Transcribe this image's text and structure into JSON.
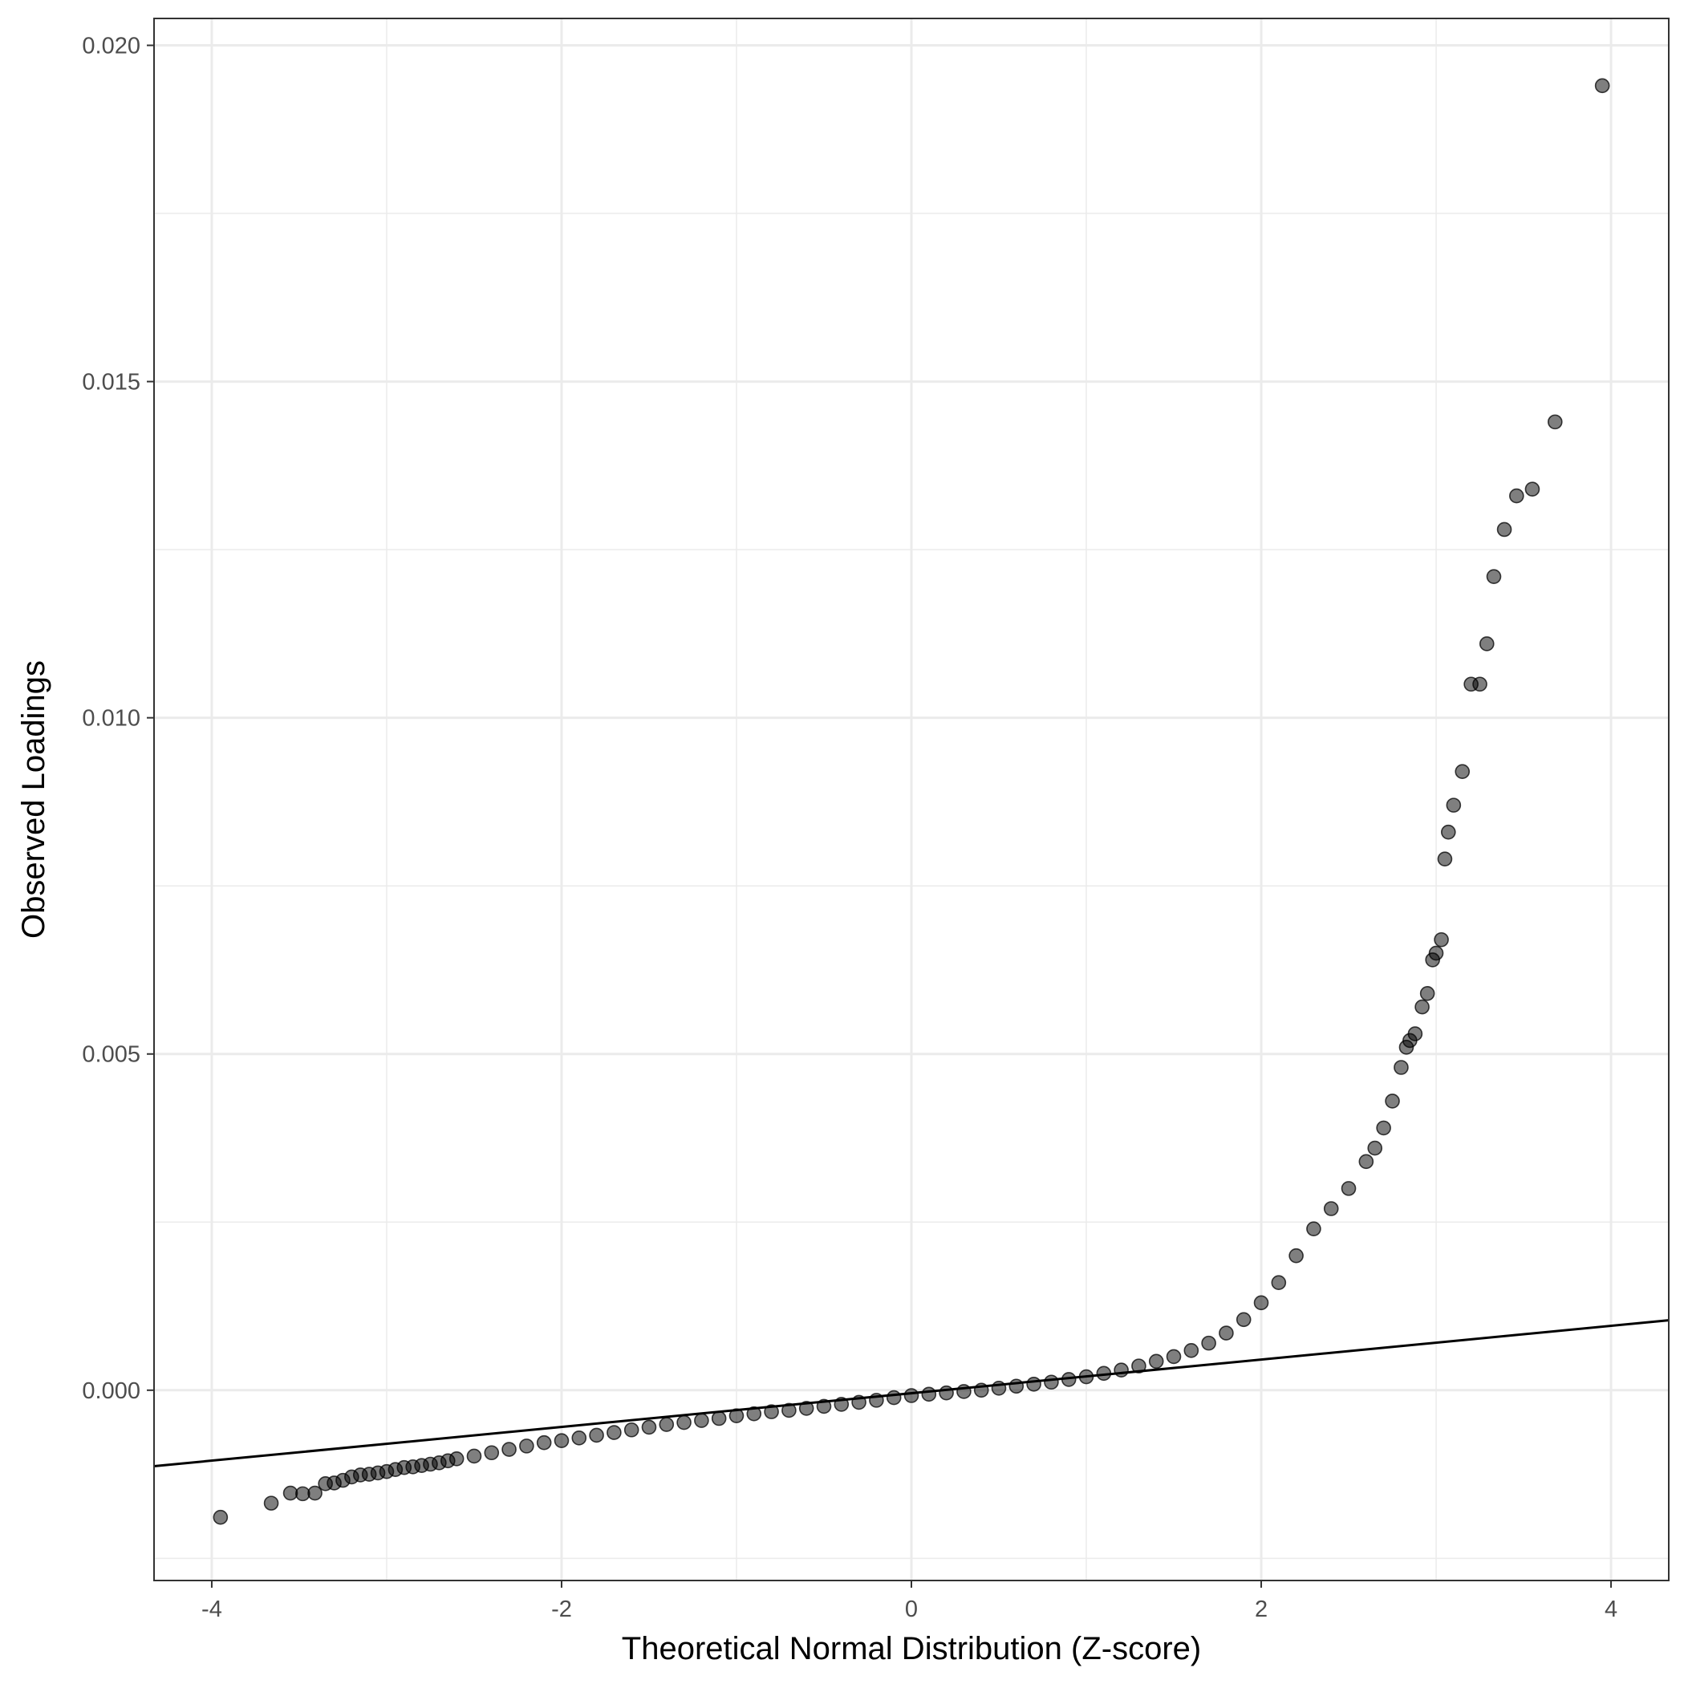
{
  "chart_data": {
    "type": "scatter",
    "title": "",
    "xlabel": "Theoretical Normal Distribution (Z-score)",
    "ylabel": "Observed Loadings",
    "xlim": [
      -4.33,
      4.33
    ],
    "ylim": [
      -0.00283,
      0.0204
    ],
    "x_ticks": [
      -4,
      -2,
      0,
      2,
      4
    ],
    "x_tick_labels": [
      "-4",
      "-2",
      "0",
      "2",
      "4"
    ],
    "y_ticks": [
      0.0,
      0.005,
      0.01,
      0.015,
      0.02
    ],
    "y_tick_labels": [
      "0.000",
      "0.005",
      "0.010",
      "0.015",
      "0.020"
    ],
    "grid": true,
    "legend": "none",
    "reference_line": {
      "type": "qq-line",
      "points": [
        [
          -4.33,
          -0.00113
        ],
        [
          4.33,
          0.00104
        ]
      ],
      "color": "#000000"
    },
    "point_color": "#000000",
    "point_alpha": 0.5,
    "series": [
      {
        "values": [
          [
            -3.95,
            -0.00189
          ],
          [
            -3.66,
            -0.00168
          ],
          [
            -3.55,
            -0.00153
          ],
          [
            -3.48,
            -0.00154
          ],
          [
            -3.41,
            -0.00153
          ],
          [
            -3.35,
            -0.00139
          ],
          [
            -3.3,
            -0.00138
          ],
          [
            -3.25,
            -0.00134
          ],
          [
            -3.2,
            -0.00129
          ],
          [
            -3.15,
            -0.00126
          ],
          [
            -3.1,
            -0.00125
          ],
          [
            -3.05,
            -0.00123
          ],
          [
            -3.0,
            -0.00121
          ],
          [
            -2.95,
            -0.00118
          ],
          [
            -2.9,
            -0.00115
          ],
          [
            -2.85,
            -0.00114
          ],
          [
            -2.8,
            -0.00112
          ],
          [
            -2.75,
            -0.0011
          ],
          [
            -2.7,
            -0.00108
          ],
          [
            -2.65,
            -0.00105
          ],
          [
            -2.6,
            -0.00102
          ],
          [
            -2.5,
            -0.00098
          ],
          [
            -2.4,
            -0.00093
          ],
          [
            -2.3,
            -0.00088
          ],
          [
            -2.2,
            -0.00083
          ],
          [
            -2.1,
            -0.00078
          ],
          [
            -2.0,
            -0.00075
          ],
          [
            -1.9,
            -0.00071
          ],
          [
            -1.8,
            -0.00067
          ],
          [
            -1.7,
            -0.00063
          ],
          [
            -1.6,
            -0.00059
          ],
          [
            -1.5,
            -0.00055
          ],
          [
            -1.4,
            -0.00051
          ],
          [
            -1.3,
            -0.00048
          ],
          [
            -1.2,
            -0.00045
          ],
          [
            -1.1,
            -0.00042
          ],
          [
            -1.0,
            -0.00038
          ],
          [
            -0.9,
            -0.00035
          ],
          [
            -0.8,
            -0.00032
          ],
          [
            -0.7,
            -0.0003
          ],
          [
            -0.6,
            -0.00027
          ],
          [
            -0.5,
            -0.00024
          ],
          [
            -0.4,
            -0.00021
          ],
          [
            -0.3,
            -0.00018
          ],
          [
            -0.2,
            -0.00015
          ],
          [
            -0.1,
            -0.00011
          ],
          [
            0.0,
            -8e-05
          ],
          [
            0.1,
            -6e-05
          ],
          [
            0.2,
            -4e-05
          ],
          [
            0.3,
            -2e-05
          ],
          [
            0.4,
            0.0
          ],
          [
            0.5,
            3e-05
          ],
          [
            0.6,
            6e-05
          ],
          [
            0.7,
            9e-05
          ],
          [
            0.8,
            0.00012
          ],
          [
            0.9,
            0.00016
          ],
          [
            1.0,
            0.0002
          ],
          [
            1.1,
            0.00025
          ],
          [
            1.2,
            0.0003
          ],
          [
            1.3,
            0.00036
          ],
          [
            1.4,
            0.00043
          ],
          [
            1.5,
            0.0005
          ],
          [
            1.6,
            0.00059
          ],
          [
            1.7,
            0.0007
          ],
          [
            1.8,
            0.00085
          ],
          [
            1.9,
            0.00105
          ],
          [
            2.0,
            0.0013
          ],
          [
            2.1,
            0.0016
          ],
          [
            2.2,
            0.002
          ],
          [
            2.3,
            0.0024
          ],
          [
            2.4,
            0.0027
          ],
          [
            2.5,
            0.003
          ],
          [
            2.6,
            0.0034
          ],
          [
            2.65,
            0.0036
          ],
          [
            2.7,
            0.0039
          ],
          [
            2.75,
            0.0043
          ],
          [
            2.8,
            0.0048
          ],
          [
            2.83,
            0.0051
          ],
          [
            2.85,
            0.0052
          ],
          [
            2.88,
            0.0053
          ],
          [
            2.92,
            0.0057
          ],
          [
            2.95,
            0.0059
          ],
          [
            2.98,
            0.0064
          ],
          [
            3.0,
            0.0065
          ],
          [
            3.03,
            0.0067
          ],
          [
            3.05,
            0.0079
          ],
          [
            3.07,
            0.0083
          ],
          [
            3.1,
            0.0087
          ],
          [
            3.15,
            0.0092
          ],
          [
            3.2,
            0.0105
          ],
          [
            3.25,
            0.0105
          ],
          [
            3.29,
            0.0111
          ],
          [
            3.33,
            0.0121
          ],
          [
            3.39,
            0.0128
          ],
          [
            3.46,
            0.0133
          ],
          [
            3.55,
            0.0134
          ],
          [
            3.68,
            0.0144
          ],
          [
            3.95,
            0.0194
          ]
        ]
      }
    ]
  }
}
